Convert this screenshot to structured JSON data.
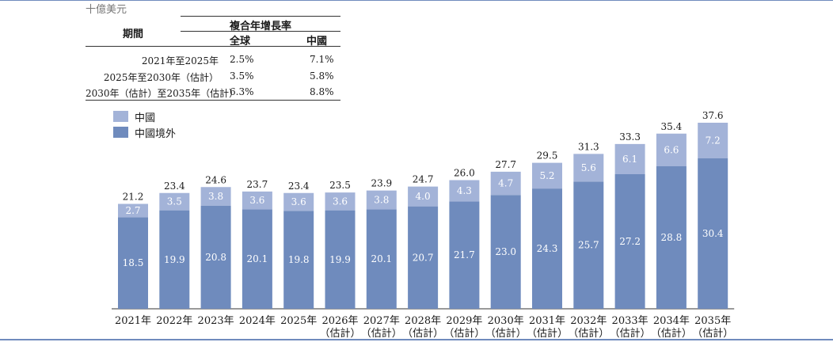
{
  "unit_label": "十億美元",
  "cagr_table": {
    "period_header": "期間",
    "cagr_header": "複合年增長率",
    "global_header": "全球",
    "china_header": "中國",
    "rows": [
      {
        "period": "2021年至2025年",
        "global": "2.5%",
        "china": "7.1%"
      },
      {
        "period": "2025年至2030年（估計）",
        "global": "3.5%",
        "china": "5.8%"
      },
      {
        "period": "2030年（估計）至2035年（估計）",
        "global": "6.3%",
        "china": "8.8%"
      }
    ]
  },
  "colors": {
    "china": "#a3b3d8",
    "outside": "#6f8bbd"
  },
  "chart_data": {
    "type": "bar",
    "stacked": true,
    "categories": [
      "2021年",
      "2022年",
      "2023年",
      "2024年",
      "2025年",
      "2026年\n（估計）",
      "2027年\n（估計）",
      "2028年\n（估計）",
      "2029年\n（估計）",
      "2030年\n（估計）",
      "2031年\n（估計）",
      "2032年\n（估計）",
      "2033年\n（估計）",
      "2034年\n（估計）",
      "2035年\n（估計）"
    ],
    "series": [
      {
        "name": "中國境外",
        "values": [
          18.5,
          19.9,
          20.8,
          20.1,
          19.8,
          19.9,
          20.1,
          20.7,
          21.7,
          23.0,
          24.3,
          25.7,
          27.2,
          28.8,
          30.4
        ]
      },
      {
        "name": "中國",
        "values": [
          2.7,
          3.5,
          3.8,
          3.6,
          3.6,
          3.6,
          3.8,
          4.0,
          4.3,
          4.7,
          5.2,
          5.6,
          6.1,
          6.6,
          7.2
        ]
      }
    ],
    "totals": [
      21.2,
      23.4,
      24.6,
      23.7,
      23.4,
      23.5,
      23.9,
      24.7,
      26.0,
      27.7,
      29.5,
      31.3,
      33.3,
      35.4,
      37.6
    ],
    "legend": [
      "中國",
      "中國境外"
    ],
    "legend_position": "top-left",
    "grid": false
  }
}
